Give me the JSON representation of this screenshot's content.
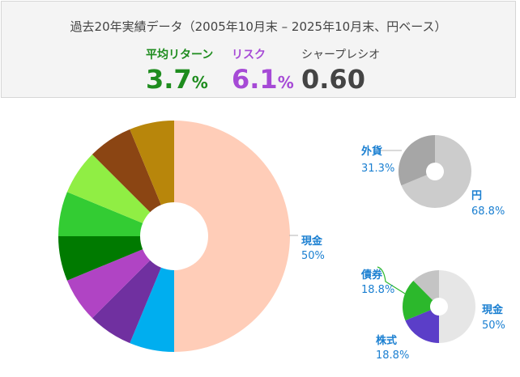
{
  "header": {
    "period": "過去20年実績データ（2005年10月末 – 2025年10月末、円ベース）",
    "return_label": "平均リターン",
    "return_value": "3.7",
    "return_unit": "%",
    "risk_label": "リスク",
    "risk_value": "6.1",
    "risk_unit": "%",
    "sharpe_label": "シャープレシオ",
    "sharpe_value": "0.60"
  },
  "colors": {
    "return": "#1e8c1e",
    "risk": "#a64ad6",
    "sharpe": "#444444",
    "label_text": "#1a7fd1"
  },
  "chart_data": [
    {
      "type": "pie",
      "series": [
        {
          "label": "現金",
          "value": 50,
          "color": "#ffcdb8"
        },
        {
          "label": "",
          "value": 6.25,
          "color": "#00aeef"
        },
        {
          "label": "",
          "value": 6.25,
          "color": "#7030a0"
        },
        {
          "label": "",
          "value": 6.25,
          "color": "#b044c4"
        },
        {
          "label": "",
          "value": 6.25,
          "color": "#007a00"
        },
        {
          "label": "",
          "value": 6.25,
          "color": "#33cc33"
        },
        {
          "label": "",
          "value": 6.25,
          "color": "#90ee44"
        },
        {
          "label": "",
          "value": 6.25,
          "color": "#8b4513"
        },
        {
          "label": "",
          "value": 6.25,
          "color": "#b8860b"
        }
      ],
      "labels": [
        {
          "name": "現金",
          "pct": "50%"
        }
      ]
    },
    {
      "type": "pie",
      "series": [
        {
          "label": "円",
          "value": 68.8,
          "color": "#cccccc"
        },
        {
          "label": "外貨",
          "value": 31.3,
          "color": "#a6a6a6"
        }
      ],
      "labels": [
        {
          "name": "外貨",
          "pct": "31.3%"
        },
        {
          "name": "円",
          "pct": "68.8%"
        }
      ]
    },
    {
      "type": "pie",
      "series": [
        {
          "label": "現金",
          "value": 50,
          "color": "#e6e6e6"
        },
        {
          "label": "株式",
          "value": 18.8,
          "color": "#5b3ec8"
        },
        {
          "label": "債券",
          "value": 18.8,
          "color": "#2cb82c"
        },
        {
          "label": "",
          "value": 12.4,
          "color": "#c4c4c4"
        }
      ],
      "labels": [
        {
          "name": "債券",
          "pct": "18.8%"
        },
        {
          "name": "株式",
          "pct": "18.8%"
        },
        {
          "name": "現金",
          "pct": "50%"
        }
      ]
    }
  ]
}
